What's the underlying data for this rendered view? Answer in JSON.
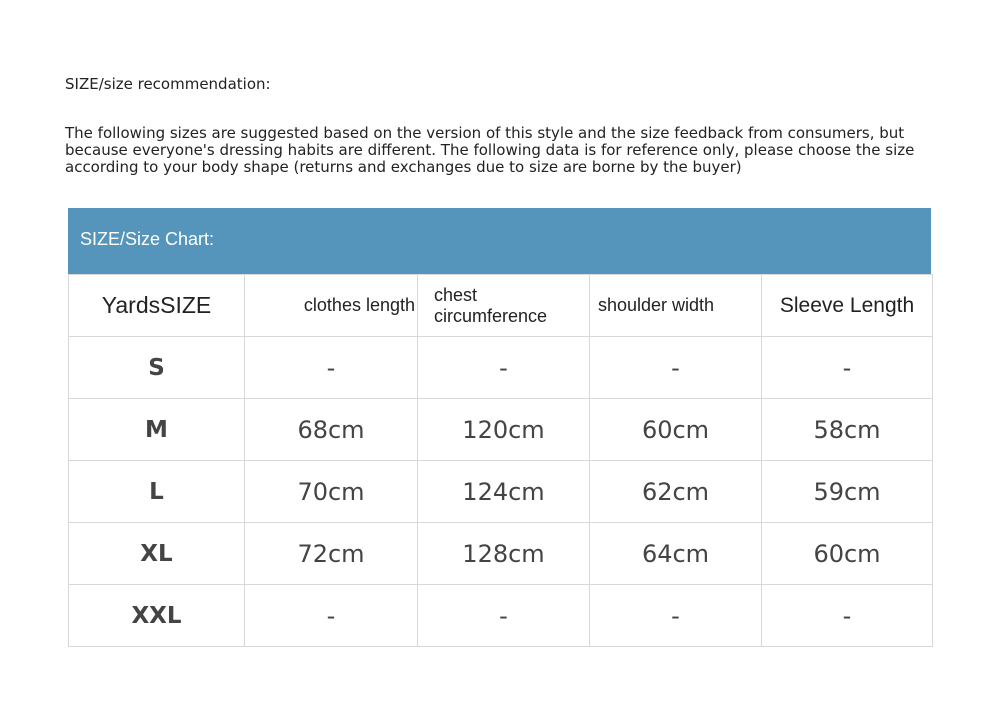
{
  "title": "SIZE/size recommendation:",
  "description": "The following sizes are suggested based on the version of this style and the size feedback from consumers, but because everyone's dressing habits are different. The following data is for reference only, please choose the size according to your body shape (returns and exchanges due to size are borne by the buyer)",
  "banner": "SIZE/Size Chart:",
  "header_color": "#5595bb",
  "columns": [
    "YardsSIZE",
    "clothes length",
    "chest circumference",
    "shoulder width",
    "Sleeve Length"
  ],
  "rows": [
    [
      "S",
      "-",
      "-",
      "-",
      "-"
    ],
    [
      "M",
      "68cm",
      "120cm",
      "60cm",
      "58cm"
    ],
    [
      "L",
      "70cm",
      "124cm",
      "62cm",
      "59cm"
    ],
    [
      "XL",
      "72cm",
      "128cm",
      "64cm",
      "60cm"
    ],
    [
      "XXL",
      "-",
      "-",
      "-",
      "-"
    ]
  ]
}
